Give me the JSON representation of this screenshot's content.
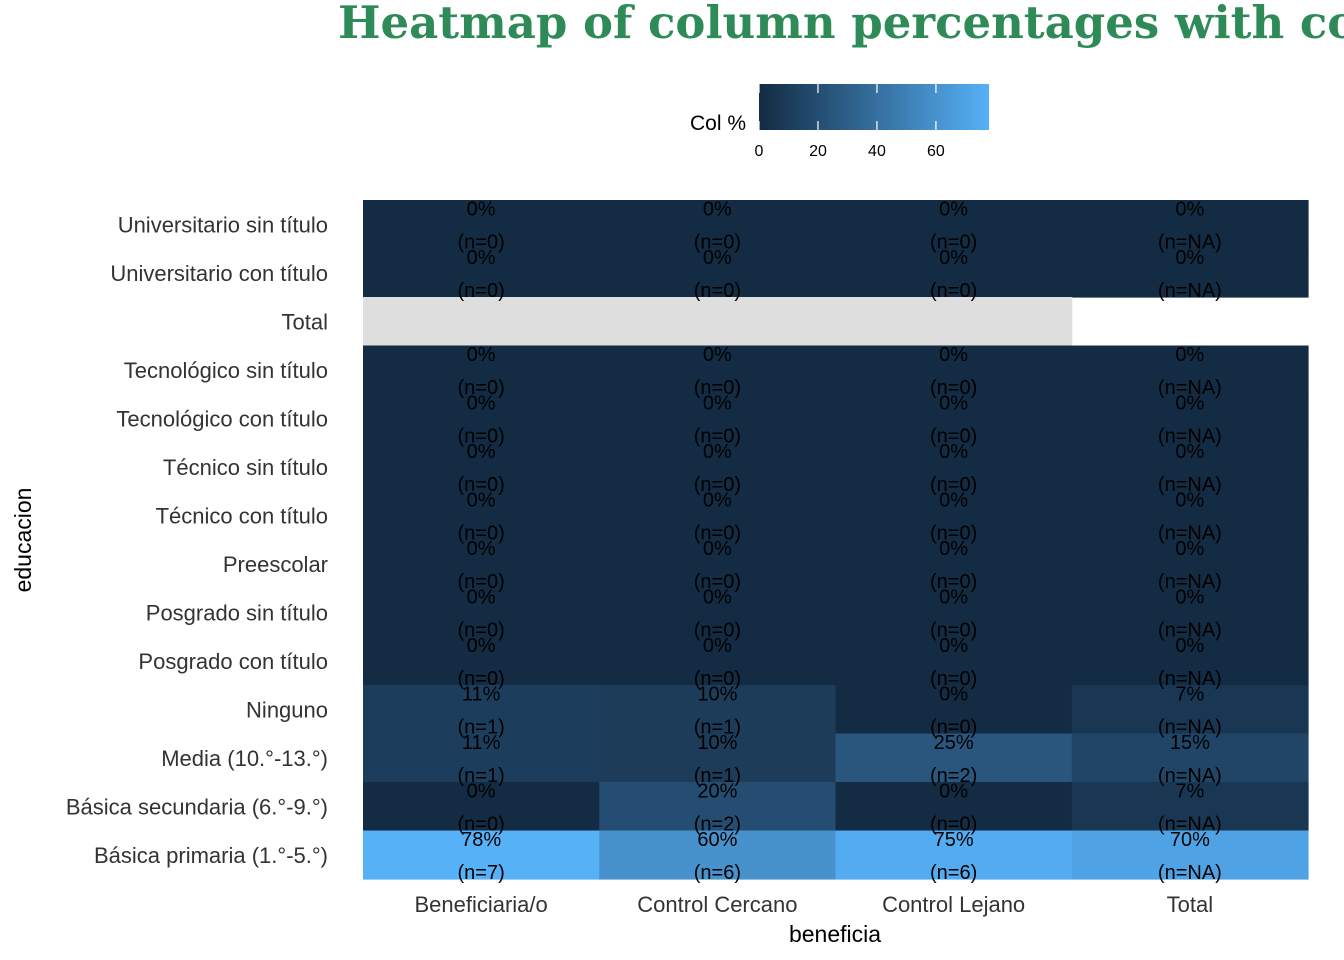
{
  "chart_data": {
    "type": "heatmap",
    "title": "Heatmap of column percentages with counts",
    "xlabel": "beneficia",
    "ylabel": "educacion",
    "x_categories": [
      "Beneficiaria/o",
      "Control Cercano",
      "Control Lejano",
      "Total"
    ],
    "y_categories": [
      "Universitario sin título",
      "Universitario con título",
      "Total",
      "Tecnológico sin título",
      "Tecnológico con título",
      "Técnico sin título",
      "Técnico con título",
      "Preescolar",
      "Posgrado sin título",
      "Posgrado con título",
      "Ninguno",
      "Media (10.°-13.°)",
      "Básica secundaria (6.°-9.°)",
      "Básica primaria (1.°-5.°)"
    ],
    "values": [
      [
        0,
        0,
        0,
        0
      ],
      [
        0,
        0,
        0,
        0
      ],
      [
        null,
        null,
        null,
        null
      ],
      [
        0,
        0,
        0,
        0
      ],
      [
        0,
        0,
        0,
        0
      ],
      [
        0,
        0,
        0,
        0
      ],
      [
        0,
        0,
        0,
        0
      ],
      [
        0,
        0,
        0,
        0
      ],
      [
        0,
        0,
        0,
        0
      ],
      [
        0,
        0,
        0,
        0
      ],
      [
        11,
        10,
        0,
        7
      ],
      [
        11,
        10,
        25,
        15
      ],
      [
        0,
        20,
        0,
        7
      ],
      [
        78,
        60,
        75,
        70
      ]
    ],
    "labels": [
      [
        [
          "0%",
          "(n=0)"
        ],
        [
          "0%",
          "(n=0)"
        ],
        [
          "0%",
          "(n=0)"
        ],
        [
          "0%",
          "(n=NA)"
        ]
      ],
      [
        [
          "0%",
          "(n=0)"
        ],
        [
          "0%",
          "(n=0)"
        ],
        [
          "0%",
          "(n=0)"
        ],
        [
          "0%",
          "(n=NA)"
        ]
      ],
      [
        null,
        null,
        null,
        null
      ],
      [
        [
          "0%",
          "(n=0)"
        ],
        [
          "0%",
          "(n=0)"
        ],
        [
          "0%",
          "(n=0)"
        ],
        [
          "0%",
          "(n=NA)"
        ]
      ],
      [
        [
          "0%",
          "(n=0)"
        ],
        [
          "0%",
          "(n=0)"
        ],
        [
          "0%",
          "(n=0)"
        ],
        [
          "0%",
          "(n=NA)"
        ]
      ],
      [
        [
          "0%",
          "(n=0)"
        ],
        [
          "0%",
          "(n=0)"
        ],
        [
          "0%",
          "(n=0)"
        ],
        [
          "0%",
          "(n=NA)"
        ]
      ],
      [
        [
          "0%",
          "(n=0)"
        ],
        [
          "0%",
          "(n=0)"
        ],
        [
          "0%",
          "(n=0)"
        ],
        [
          "0%",
          "(n=NA)"
        ]
      ],
      [
        [
          "0%",
          "(n=0)"
        ],
        [
          "0%",
          "(n=0)"
        ],
        [
          "0%",
          "(n=0)"
        ],
        [
          "0%",
          "(n=NA)"
        ]
      ],
      [
        [
          "0%",
          "(n=0)"
        ],
        [
          "0%",
          "(n=0)"
        ],
        [
          "0%",
          "(n=0)"
        ],
        [
          "0%",
          "(n=NA)"
        ]
      ],
      [
        [
          "0%",
          "(n=0)"
        ],
        [
          "0%",
          "(n=0)"
        ],
        [
          "0%",
          "(n=0)"
        ],
        [
          "0%",
          "(n=NA)"
        ]
      ],
      [
        [
          "11%",
          "(n=1)"
        ],
        [
          "10%",
          "(n=1)"
        ],
        [
          "0%",
          "(n=0)"
        ],
        [
          "7%",
          "(n=NA)"
        ]
      ],
      [
        [
          "11%",
          "(n=1)"
        ],
        [
          "10%",
          "(n=1)"
        ],
        [
          "25%",
          "(n=2)"
        ],
        [
          "15%",
          "(n=NA)"
        ]
      ],
      [
        [
          "0%",
          "(n=0)"
        ],
        [
          "20%",
          "(n=2)"
        ],
        [
          "0%",
          "(n=0)"
        ],
        [
          "7%",
          "(n=NA)"
        ]
      ],
      [
        [
          "78%",
          "(n=7)"
        ],
        [
          "60%",
          "(n=6)"
        ],
        [
          "75%",
          "(n=6)"
        ],
        [
          "70%",
          "(n=NA)"
        ]
      ]
    ],
    "missing_cells": [
      [
        2,
        0
      ],
      [
        2,
        1
      ],
      [
        2,
        2
      ]
    ],
    "legend": {
      "title": "Col %",
      "ticks": [
        0,
        20,
        40,
        60
      ],
      "range": [
        0,
        78
      ],
      "placement": "top",
      "low_color": "#132b43",
      "high_color": "#56b1f7"
    },
    "colors": {
      "low": "#132b43",
      "high": "#56b1f7",
      "na": "#dedede",
      "title": "#2e8b57"
    }
  }
}
